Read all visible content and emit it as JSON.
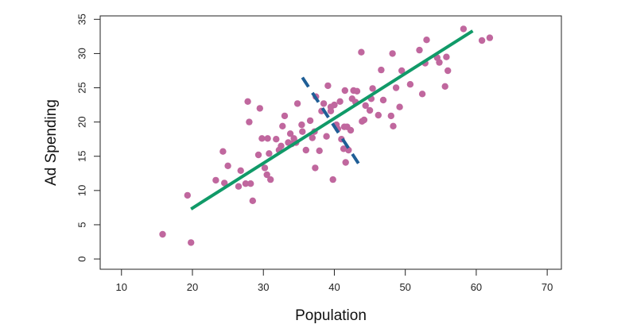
{
  "chart_data": {
    "type": "scatter",
    "title": "",
    "xlabel": "Population",
    "ylabel": "Ad Spending",
    "xlim": [
      7,
      72
    ],
    "ylim": [
      -1.5,
      35.5
    ],
    "x_ticks": [
      10,
      20,
      30,
      40,
      50,
      60,
      70
    ],
    "y_ticks": [
      0,
      5,
      10,
      15,
      20,
      25,
      30,
      35
    ],
    "grid": false,
    "legend": "none",
    "colors": {
      "points": "#c0679e",
      "fit_line": "#109a68",
      "dashed_line": "#1f5e96"
    },
    "points": [
      [
        15.8,
        3.6
      ],
      [
        19.8,
        2.4
      ],
      [
        19.3,
        9.3
      ],
      [
        23.3,
        11.5
      ],
      [
        24.3,
        15.7
      ],
      [
        24.5,
        11.1
      ],
      [
        25.0,
        13.6
      ],
      [
        26.5,
        10.6
      ],
      [
        26.8,
        12.9
      ],
      [
        27.5,
        11.0
      ],
      [
        28.2,
        11.0
      ],
      [
        28.5,
        8.5
      ],
      [
        28.0,
        20.0
      ],
      [
        27.8,
        23.0
      ],
      [
        29.5,
        22.0
      ],
      [
        29.3,
        15.2
      ],
      [
        29.8,
        17.6
      ],
      [
        30.2,
        13.3
      ],
      [
        30.6,
        17.6
      ],
      [
        30.5,
        12.3
      ],
      [
        30.8,
        15.4
      ],
      [
        31.0,
        11.6
      ],
      [
        31.8,
        17.5
      ],
      [
        32.2,
        15.9
      ],
      [
        32.5,
        16.5
      ],
      [
        32.7,
        19.4
      ],
      [
        33.0,
        20.9
      ],
      [
        33.5,
        17.0
      ],
      [
        33.8,
        18.3
      ],
      [
        34.0,
        16.8
      ],
      [
        34.3,
        17.6
      ],
      [
        34.6,
        17.0
      ],
      [
        34.8,
        22.7
      ],
      [
        35.4,
        19.6
      ],
      [
        35.5,
        18.6
      ],
      [
        36.0,
        15.9
      ],
      [
        36.6,
        20.2
      ],
      [
        36.9,
        17.7
      ],
      [
        37.2,
        18.6
      ],
      [
        37.3,
        13.3
      ],
      [
        37.4,
        23.7
      ],
      [
        37.9,
        15.8
      ],
      [
        38.2,
        21.6
      ],
      [
        38.5,
        22.7
      ],
      [
        38.9,
        17.9
      ],
      [
        39.1,
        25.3
      ],
      [
        39.5,
        22.2
      ],
      [
        39.5,
        21.6
      ],
      [
        39.8,
        11.6
      ],
      [
        40.0,
        22.5
      ],
      [
        40.3,
        19.6
      ],
      [
        40.5,
        19.0
      ],
      [
        40.8,
        23.0
      ],
      [
        41.0,
        17.5
      ],
      [
        41.3,
        16.1
      ],
      [
        41.4,
        19.3
      ],
      [
        41.5,
        24.6
      ],
      [
        41.6,
        14.1
      ],
      [
        41.8,
        19.3
      ],
      [
        42.0,
        15.9
      ],
      [
        42.3,
        18.8
      ],
      [
        42.5,
        23.4
      ],
      [
        42.7,
        24.6
      ],
      [
        43.0,
        22.9
      ],
      [
        43.2,
        24.5
      ],
      [
        43.8,
        30.2
      ],
      [
        43.9,
        20.1
      ],
      [
        44.2,
        20.3
      ],
      [
        44.4,
        22.4
      ],
      [
        45.0,
        21.7
      ],
      [
        45.2,
        23.4
      ],
      [
        45.4,
        24.9
      ],
      [
        46.2,
        21.0
      ],
      [
        46.6,
        27.6
      ],
      [
        46.9,
        23.2
      ],
      [
        48.0,
        20.9
      ],
      [
        48.2,
        30.0
      ],
      [
        48.3,
        19.4
      ],
      [
        48.7,
        25.0
      ],
      [
        49.2,
        22.2
      ],
      [
        49.5,
        27.5
      ],
      [
        50.7,
        25.5
      ],
      [
        52.0,
        30.5
      ],
      [
        52.4,
        24.1
      ],
      [
        52.8,
        28.6
      ],
      [
        53.0,
        32.0
      ],
      [
        54.5,
        29.4
      ],
      [
        54.8,
        28.7
      ],
      [
        55.6,
        25.2
      ],
      [
        55.8,
        29.5
      ],
      [
        56.0,
        27.5
      ],
      [
        58.2,
        33.6
      ],
      [
        60.8,
        31.9
      ],
      [
        61.9,
        32.3
      ]
    ],
    "fit_line": {
      "x": [
        19.8,
        59.5
      ],
      "y": [
        7.3,
        33.3
      ]
    },
    "dashed_line": {
      "x": [
        35.5,
        43.5
      ],
      "y": [
        26.5,
        13.8
      ]
    }
  }
}
